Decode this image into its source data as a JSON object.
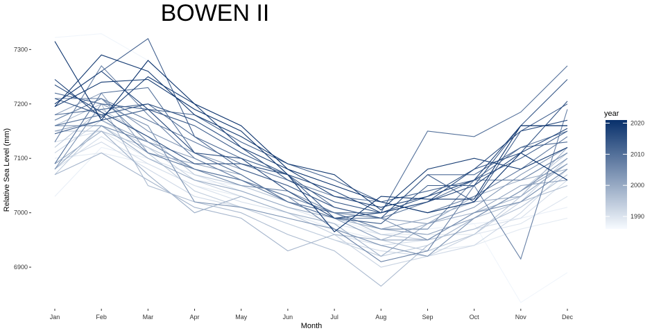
{
  "chart_data": {
    "type": "line",
    "title": "BOWEN II",
    "xlabel": "Month",
    "ylabel": "Relative Sea Level (mm)",
    "categories": [
      "Jan",
      "Feb",
      "Mar",
      "Apr",
      "May",
      "Jun",
      "Jul",
      "Aug",
      "Sep",
      "Oct",
      "Nov",
      "Dec"
    ],
    "ylim": [
      6830,
      7340
    ],
    "yticks": [
      6900,
      7000,
      7100,
      7200,
      7300
    ],
    "grid": false,
    "legend": {
      "title": "year",
      "position": "right",
      "type": "colorbar",
      "range": [
        1986,
        2021
      ],
      "ticks": [
        1990,
        2000,
        2010,
        2020
      ],
      "color_low": "#f7fbff",
      "color_high": "#08306b"
    },
    "series": [
      {
        "year": 1987,
        "values": [
          7322,
          7329,
          7280,
          7180,
          7110,
          7070,
          7040,
          7010,
          7000,
          6980,
          6835,
          6890
        ]
      },
      {
        "year": 1988,
        "values": [
          7030,
          7120,
          7100,
          7060,
          7050,
          7020,
          6990,
          6960,
          6970,
          6980,
          6990,
          7010
        ]
      },
      {
        "year": 1989,
        "values": [
          7100,
          7110,
          7090,
          7050,
          7030,
          7000,
          6970,
          6950,
          6930,
          6940,
          6970,
          6990
        ]
      },
      {
        "year": 1990,
        "values": [
          7130,
          7150,
          7100,
          7070,
          7040,
          7010,
          6980,
          6960,
          6960,
          6960,
          6980,
          7030
        ]
      },
      {
        "year": 1991,
        "values": [
          7080,
          7140,
          7090,
          7050,
          7020,
          7000,
          6960,
          6940,
          6950,
          6970,
          6990,
          7060
        ]
      },
      {
        "year": 1992,
        "values": [
          7090,
          7130,
          7080,
          7030,
          7010,
          6980,
          6950,
          6930,
          6920,
          6940,
          7000,
          7080
        ]
      },
      {
        "year": 1993,
        "values": [
          7110,
          7170,
          7120,
          7060,
          7030,
          7000,
          6960,
          6900,
          6920,
          6960,
          7020,
          7100
        ]
      },
      {
        "year": 1994,
        "values": [
          7070,
          7160,
          7110,
          7040,
          7010,
          6980,
          6950,
          6920,
          6940,
          6990,
          7040,
          7110
        ]
      },
      {
        "year": 1995,
        "values": [
          7120,
          7190,
          7140,
          7070,
          7050,
          7020,
          6990,
          6950,
          6930,
          6960,
          7030,
          7090
        ]
      },
      {
        "year": 1996,
        "values": [
          7150,
          7150,
          7120,
          7080,
          7060,
          7030,
          7000,
          6960,
          6950,
          6970,
          7010,
          7070
        ]
      },
      {
        "year": 1997,
        "values": [
          7160,
          7200,
          7050,
          7020,
          7000,
          6960,
          6930,
          6865,
          6940,
          6990,
          7020,
          7050
        ]
      },
      {
        "year": 1998,
        "values": [
          7070,
          7110,
          7060,
          7010,
          6990,
          6930,
          6960,
          6950,
          6980,
          7000,
          7030,
          7120
        ]
      },
      {
        "year": 1999,
        "values": [
          7090,
          7150,
          7070,
          7000,
          7030,
          7000,
          6980,
          6920,
          6980,
          7030,
          7060,
          7080
        ]
      },
      {
        "year": 2000,
        "values": [
          7080,
          7160,
          7100,
          7060,
          7040,
          7010,
          6990,
          6970,
          6990,
          7020,
          7030,
          7090
        ]
      },
      {
        "year": 2001,
        "values": [
          7180,
          7220,
          7110,
          7090,
          7070,
          7020,
          6990,
          6950,
          6950,
          7000,
          7050,
          7060
        ]
      },
      {
        "year": 2002,
        "values": [
          7150,
          7170,
          7130,
          7100,
          7060,
          7030,
          7000,
          6970,
          6960,
          6990,
          7040,
          7090
        ]
      },
      {
        "year": 2003,
        "values": [
          7170,
          7210,
          7150,
          7110,
          7080,
          7050,
          7010,
          6990,
          6980,
          7010,
          7070,
          7120
        ]
      },
      {
        "year": 2004,
        "values": [
          7080,
          7200,
          7160,
          7020,
          7010,
          6990,
          6970,
          6940,
          6920,
          6990,
          7040,
          7100
        ]
      },
      {
        "year": 2005,
        "values": [
          7160,
          7160,
          7130,
          7080,
          7060,
          7030,
          7000,
          6990,
          6950,
          7000,
          7020,
          7080
        ]
      },
      {
        "year": 2006,
        "values": [
          7170,
          7210,
          7130,
          7080,
          7050,
          7040,
          7000,
          6970,
          6970,
          7060,
          7060,
          7110
        ]
      },
      {
        "year": 2007,
        "values": [
          7130,
          7270,
          7180,
          7100,
          7060,
          7030,
          6970,
          6910,
          6930,
          7050,
          6915,
          7190
        ]
      },
      {
        "year": 2008,
        "values": [
          7210,
          7210,
          7170,
          7130,
          7090,
          7060,
          7030,
          7020,
          7000,
          7030,
          7080,
          7140
        ]
      },
      {
        "year": 2009,
        "values": [
          7160,
          7180,
          7110,
          7080,
          7060,
          7020,
          6990,
          6990,
          7020,
          7060,
          7120,
          7150
        ]
      },
      {
        "year": 2010,
        "values": [
          7090,
          7220,
          7230,
          7110,
          7070,
          7020,
          7000,
          7000,
          7150,
          7140,
          7185,
          7270
        ]
      },
      {
        "year": 2011,
        "values": [
          7180,
          7190,
          7200,
          7140,
          7100,
          7070,
          7010,
          6990,
          7070,
          7070,
          7120,
          7130
        ]
      },
      {
        "year": 2012,
        "values": [
          7220,
          7200,
          7190,
          7180,
          7130,
          7090,
          7060,
          7020,
          7040,
          7060,
          7100,
          7150
        ]
      },
      {
        "year": 2013,
        "values": [
          7200,
          7260,
          7320,
          7140,
          7080,
          7050,
          7010,
          6990,
          7070,
          7020,
          7150,
          7200
        ]
      },
      {
        "year": 2014,
        "values": [
          7145,
          7170,
          7190,
          7160,
          7110,
          7070,
          6990,
          6980,
          7050,
          7050,
          7160,
          7245
        ]
      },
      {
        "year": 2015,
        "values": [
          7210,
          7180,
          7200,
          7170,
          7120,
          7060,
          7020,
          7000,
          7030,
          7080,
          7110,
          7205
        ]
      },
      {
        "year": 2016,
        "values": [
          7235,
          7185,
          7140,
          7090,
          7090,
          7070,
          7040,
          7000,
          7020,
          7080,
          7150,
          7170
        ]
      },
      {
        "year": 2017,
        "values": [
          7200,
          7260,
          7190,
          7110,
          7100,
          7040,
          6990,
          7000,
          7020,
          7050,
          7110,
          7155
        ]
      },
      {
        "year": 2018,
        "values": [
          7245,
          7175,
          7250,
          7200,
          7120,
          7080,
          7030,
          7010,
          7030,
          7060,
          7160,
          7160
        ]
      },
      {
        "year": 2019,
        "values": [
          7195,
          7290,
          7260,
          7180,
          7140,
          7090,
          7070,
          7005,
          7080,
          7100,
          7080,
          7120
        ]
      },
      {
        "year": 2020,
        "values": [
          7195,
          7240,
          7245,
          7190,
          7150,
          7070,
          6965,
          7030,
          7025,
          7025,
          7160,
          7160
        ]
      },
      {
        "year": 2021,
        "values": [
          7315,
          7170,
          7280,
          7200,
          7160,
          7080,
          7050,
          7020,
          7000,
          7020,
          7110,
          7060
        ]
      }
    ]
  }
}
